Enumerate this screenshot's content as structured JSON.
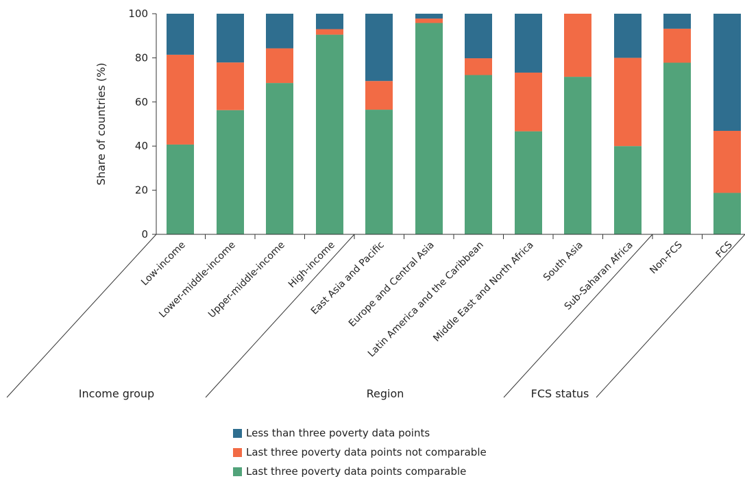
{
  "chart_data": {
    "type": "bar",
    "stacked": true,
    "ylabel": "Share of countries (%)",
    "ylim": [
      0,
      100
    ],
    "yticks": [
      0,
      20,
      40,
      60,
      80,
      100
    ],
    "categories": [
      "Low-income",
      "Lower-middle-income",
      "Upper-middle-income",
      "High-income",
      "East Asia and Pacific",
      "Europe and Central Asia",
      "Latin America and the Caribbean",
      "Middle East and North Africa",
      "South Asia",
      "Sub-Saharan Africa",
      "Non-FCS",
      "FCS"
    ],
    "groups": [
      {
        "label": "Income group",
        "count": 4
      },
      {
        "label": "Region",
        "count": 6
      },
      {
        "label": "FCS status",
        "count": 2
      }
    ],
    "series": [
      {
        "name": "Last three poverty data points comparable",
        "color": "#52a37a",
        "values": [
          40.7,
          56.3,
          68.6,
          90.5,
          56.5,
          95.8,
          72.2,
          46.7,
          71.4,
          40.0,
          77.8,
          18.8
        ]
      },
      {
        "name": "Last three poverty data points not comparable",
        "color": "#f26b45",
        "values": [
          40.7,
          21.6,
          15.7,
          2.5,
          13.0,
          2.0,
          7.6,
          26.6,
          28.6,
          40.0,
          15.4,
          28.1
        ]
      },
      {
        "name": "Less than three poverty data points",
        "color": "#2f6e8f",
        "values": [
          18.6,
          22.1,
          15.7,
          7.0,
          30.5,
          2.2,
          20.2,
          26.7,
          0.0,
          20.0,
          6.8,
          53.1
        ]
      }
    ],
    "legend": {
      "position": "bottom",
      "order": [
        "Less than three poverty data points",
        "Last three poverty data points not comparable",
        "Last three poverty data points comparable"
      ]
    },
    "grid": false
  }
}
